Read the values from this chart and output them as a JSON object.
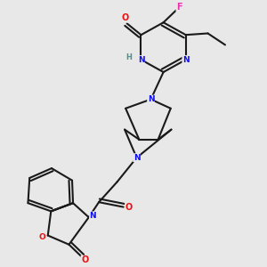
{
  "background_color": "#e8e8e8",
  "bond_color": "#1a1a1a",
  "atom_colors": {
    "N": "#1010ee",
    "O": "#ee1010",
    "F": "#ee30b0",
    "H": "#4a9090",
    "C": "#1a1a1a"
  }
}
